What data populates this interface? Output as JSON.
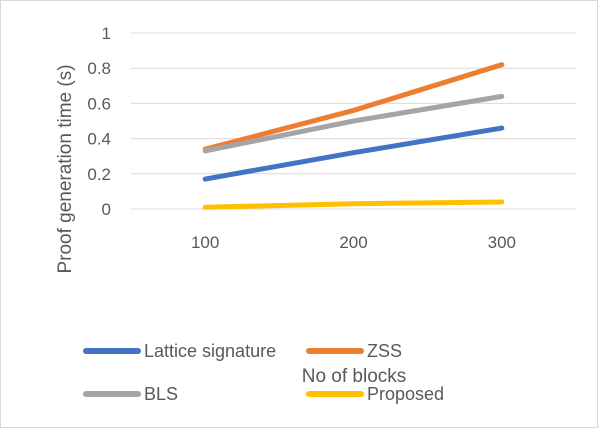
{
  "chart_data": {
    "type": "line",
    "title": "",
    "xlabel": "No of blocks",
    "ylabel": "Proof generation time (s)",
    "categories": [
      "100",
      "200",
      "300"
    ],
    "ylim": [
      0,
      1
    ],
    "yticks": [
      "0",
      "0.2",
      "0.4",
      "0.6",
      "0.8",
      "1"
    ],
    "grid": true,
    "legend_position": "bottom",
    "series": [
      {
        "name": "Lattice signature",
        "color": "#4472c4",
        "values": [
          0.17,
          0.32,
          0.46
        ]
      },
      {
        "name": "ZSS",
        "color": "#ed7d31",
        "values": [
          0.34,
          0.56,
          0.82
        ]
      },
      {
        "name": "BLS",
        "color": "#a5a5a5",
        "values": [
          0.33,
          0.5,
          0.64
        ]
      },
      {
        "name": "Proposed",
        "color": "#ffc000",
        "values": [
          0.01,
          0.03,
          0.04
        ]
      }
    ]
  }
}
